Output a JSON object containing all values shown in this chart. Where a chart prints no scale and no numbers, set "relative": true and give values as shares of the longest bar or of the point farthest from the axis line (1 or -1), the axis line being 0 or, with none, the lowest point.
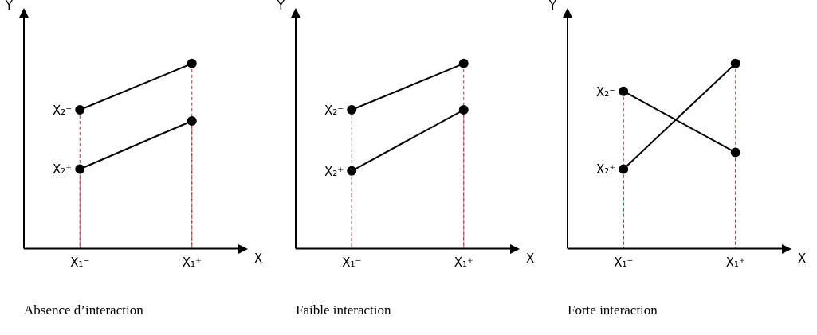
{
  "chart_data": [
    {
      "type": "line",
      "grid": "x",
      "title": "Absence d’interaction",
      "xlabel": "X",
      "ylabel": "Y",
      "categories": [
        "X₁⁻",
        "X₁⁺"
      ],
      "relative": true,
      "marker": "circle",
      "legend": false,
      "series": [
        {
          "name": "X₂⁻",
          "color": "#000000",
          "values": [
            0.75,
            1
          ]
        },
        {
          "name": "X₂⁺",
          "color": "#000000",
          "values": [
            0.43,
            0.69
          ]
        }
      ]
    },
    {
      "type": "line",
      "grid": "x",
      "title": "Faible interaction",
      "xlabel": "X",
      "ylabel": "Y",
      "categories": [
        "X₁⁻",
        "X₁⁺"
      ],
      "relative": true,
      "marker": "circle",
      "legend": false,
      "series": [
        {
          "name": "X₂⁻",
          "color": "#000000",
          "values": [
            0.75,
            1
          ]
        },
        {
          "name": "X₂⁺",
          "color": "#000000",
          "values": [
            0.42,
            0.75
          ]
        }
      ]
    },
    {
      "type": "line",
      "grid": "x",
      "title": "Forte interaction",
      "xlabel": "X",
      "ylabel": "Y",
      "categories": [
        "X₁⁻",
        "X₁⁺"
      ],
      "relative": true,
      "marker": "circle",
      "legend": false,
      "series": [
        {
          "name": "X₂⁻",
          "color": "#000000",
          "values": [
            0.85,
            0.52
          ]
        },
        {
          "name": "X₂⁺",
          "color": "#000000",
          "values": [
            0.43,
            1
          ]
        }
      ]
    }
  ]
}
